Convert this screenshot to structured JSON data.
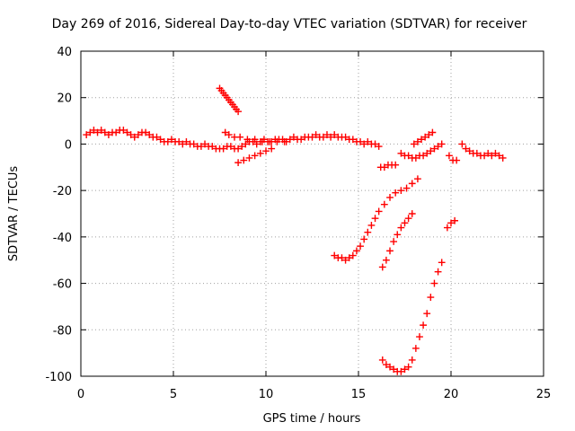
{
  "chart_data": {
    "type": "scatter",
    "title": "Day 269 of 2016, Sidereal Day-to-day VTEC variation (SDTVAR) for receiver",
    "xlabel": "GPS time / hours",
    "ylabel": "SDTVAR / TECUs",
    "xlim": [
      0,
      25
    ],
    "ylim": [
      -100,
      40
    ],
    "xticks": [
      0,
      5,
      10,
      15,
      20,
      25
    ],
    "yticks": [
      -100,
      -80,
      -60,
      -40,
      -20,
      0,
      20,
      40
    ],
    "grid": true,
    "marker": "+",
    "color": "#ff0000",
    "series": [
      {
        "x": [
          0.3,
          0.5,
          0.7,
          0.9,
          1.1,
          1.3,
          1.5,
          1.7,
          1.9,
          2.1,
          2.3,
          2.5,
          2.7,
          2.9,
          3.1,
          3.3,
          3.5,
          3.7,
          3.9,
          4.1,
          4.3,
          4.5,
          4.7,
          4.9,
          5.1,
          5.3,
          5.5,
          5.7,
          5.9,
          6.1,
          6.3,
          6.5,
          6.7,
          6.9,
          7.1,
          7.3,
          7.5,
          7.7,
          7.9,
          8.1,
          8.3,
          8.5,
          8.7,
          8.9,
          9.1,
          9.3,
          9.5,
          9.7,
          9.9,
          10.1,
          10.3,
          10.5,
          10.7,
          10.9,
          11.1,
          11.3,
          11.5,
          11.7,
          11.9,
          12.1,
          12.3,
          12.5,
          12.7,
          12.9,
          13.1,
          13.3,
          13.5,
          13.7,
          13.9,
          14.1,
          14.3,
          14.5,
          14.7,
          14.9,
          15.1,
          15.3,
          15.5,
          15.7,
          15.9,
          16.1
        ],
        "y": [
          4,
          5,
          6,
          5,
          6,
          5,
          4,
          5,
          5,
          6,
          6,
          5,
          4,
          3,
          4,
          5,
          5,
          4,
          3,
          3,
          2,
          1,
          1,
          2,
          1,
          1,
          0,
          1,
          0,
          0,
          -1,
          -1,
          0,
          -1,
          -1,
          -2,
          -2,
          -2,
          -1,
          -1,
          -2,
          -2,
          -1,
          0,
          1,
          1,
          0,
          1,
          2,
          1,
          1,
          2,
          2,
          2,
          1,
          2,
          3,
          2,
          2,
          3,
          3,
          3,
          4,
          3,
          3,
          4,
          3,
          4,
          3,
          3,
          3,
          2,
          2,
          1,
          1,
          0,
          1,
          0,
          0,
          -1
        ]
      },
      {
        "x": [
          7.5,
          7.6,
          7.7,
          7.8,
          7.9,
          8.0,
          8.1,
          8.2,
          8.3,
          8.4,
          8.5
        ],
        "y": [
          24,
          23,
          22,
          21,
          20,
          19,
          18,
          17,
          16,
          15,
          14
        ]
      },
      {
        "x": [
          7.8,
          8.0,
          8.3,
          8.6,
          9.0,
          9.4,
          9.8,
          10.2,
          10.6,
          11.0
        ],
        "y": [
          5,
          4,
          3,
          3,
          2,
          2,
          1,
          1,
          1,
          1
        ]
      },
      {
        "x": [
          8.5,
          8.8,
          9.1,
          9.4,
          9.7,
          10.0,
          10.3
        ],
        "y": [
          -8,
          -7,
          -6,
          -5,
          -4,
          -3,
          -2
        ]
      },
      {
        "x": [
          13.7,
          13.9,
          14.1,
          14.3,
          14.5,
          14.7,
          14.9,
          15.1,
          15.3,
          15.5,
          15.7,
          15.9,
          16.1,
          16.4,
          16.7,
          17.0,
          17.3,
          17.6,
          17.9,
          18.2
        ],
        "y": [
          -48,
          -49,
          -49,
          -50,
          -49,
          -48,
          -46,
          -44,
          -41,
          -38,
          -35,
          -32,
          -29,
          -26,
          -23,
          -21,
          -20,
          -19,
          -17,
          -15
        ]
      },
      {
        "x": [
          16.3,
          16.5,
          16.7,
          16.9,
          17.1,
          17.3,
          17.5,
          17.7,
          17.9
        ],
        "y": [
          -53,
          -50,
          -46,
          -42,
          -39,
          -36,
          -34,
          -32,
          -30
        ]
      },
      {
        "x": [
          16.3,
          16.5,
          16.7,
          16.9,
          17.1,
          17.3,
          17.5,
          17.7,
          17.9,
          18.1,
          18.3,
          18.5,
          18.7,
          18.9,
          19.1,
          19.3,
          19.5
        ],
        "y": [
          -93,
          -95,
          -96,
          -97,
          -98,
          -98,
          -97,
          -96,
          -93,
          -88,
          -83,
          -78,
          -73,
          -66,
          -60,
          -55,
          -51
        ]
      },
      {
        "x": [
          16.2,
          16.4,
          16.6,
          16.8,
          17.0
        ],
        "y": [
          -10,
          -10,
          -9,
          -9,
          -9
        ]
      },
      {
        "x": [
          17.3,
          17.5,
          17.7,
          17.9,
          18.1,
          18.3,
          18.5,
          18.7,
          18.9,
          19.1,
          19.3,
          19.5
        ],
        "y": [
          -4,
          -5,
          -5,
          -6,
          -6,
          -5,
          -5,
          -4,
          -3,
          -2,
          -1,
          0
        ]
      },
      {
        "x": [
          18.0,
          18.2,
          18.4,
          18.6,
          18.8,
          19.0
        ],
        "y": [
          0,
          1,
          2,
          3,
          4,
          5
        ]
      },
      {
        "x": [
          19.8,
          20.0,
          20.2
        ],
        "y": [
          -36,
          -34,
          -33
        ]
      },
      {
        "x": [
          19.9,
          20.1,
          20.3
        ],
        "y": [
          -5,
          -7,
          -7
        ]
      },
      {
        "x": [
          20.6,
          20.8,
          21.0,
          21.2,
          21.4,
          21.6,
          21.8,
          22.0,
          22.2,
          22.4,
          22.6,
          22.8
        ],
        "y": [
          0,
          -2,
          -3,
          -4,
          -4,
          -5,
          -5,
          -4,
          -5,
          -4,
          -5,
          -6
        ]
      }
    ]
  }
}
